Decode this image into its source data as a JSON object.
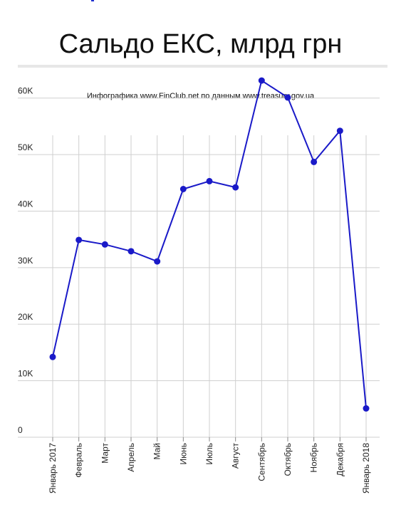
{
  "header": {
    "title": "Сальдо ЕКС, млрд грн",
    "source": "Инфографика www.FinClub.net по данным www.treasury.gov.ua"
  },
  "colors": {
    "series": "#1a1ac8",
    "grid": "#cfcfcf",
    "axis_text": "#222222",
    "accent": "#1f2fd0"
  },
  "chart_data": {
    "type": "line",
    "title": "Сальдо ЕКС, млрд грн",
    "xlabel": "",
    "ylabel": "",
    "categories": [
      "Январь 2017",
      "Февраль",
      "Март",
      "Апрель",
      "Май",
      "Июнь",
      "Июль",
      "Август",
      "Сентябрь",
      "Октябрь",
      "Ноябрь",
      "Декабря",
      "Январь 2018"
    ],
    "series": [
      {
        "values": [
          14200,
          34900,
          34100,
          32900,
          31100,
          43900,
          45300,
          44200,
          63100,
          60100,
          48700,
          54200,
          5100
        ]
      }
    ],
    "ylim": [
      0,
      65000
    ],
    "yticks": [
      {
        "value": 0,
        "label": "0"
      },
      {
        "value": 10000,
        "label": "10K"
      },
      {
        "value": 20000,
        "label": "20K"
      },
      {
        "value": 30000,
        "label": "30K"
      },
      {
        "value": 40000,
        "label": "40K"
      },
      {
        "value": 50000,
        "label": "50K"
      },
      {
        "value": 60000,
        "label": "60K"
      }
    ],
    "grid": true,
    "legend": "none"
  }
}
